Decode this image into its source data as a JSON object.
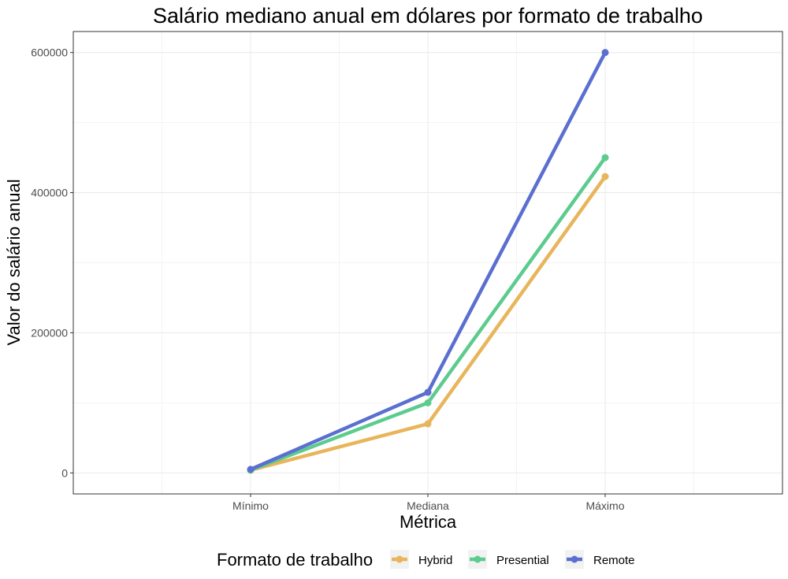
{
  "chart_data": {
    "type": "line",
    "title": "Salário mediano anual em dólares por formato de trabalho",
    "xlabel": "Métrica",
    "ylabel": "Valor do salário anual",
    "categories": [
      "Mínimo",
      "Mediana",
      "Máximo"
    ],
    "ylim": [
      -30000,
      630000
    ],
    "yticks": [
      0,
      200000,
      400000,
      600000
    ],
    "ytick_labels": [
      "0",
      "200000",
      "400000",
      "600000"
    ],
    "grid": true,
    "legend": {
      "title": "Formato de trabalho",
      "position": "bottom"
    },
    "series": [
      {
        "name": "Hybrid",
        "color": "#E8B55B",
        "values": [
          4000,
          70000,
          423000
        ]
      },
      {
        "name": "Presential",
        "color": "#5CCB8E",
        "values": [
          4000,
          100000,
          450000
        ]
      },
      {
        "name": "Remote",
        "color": "#5B6FD0",
        "values": [
          5000,
          115000,
          600000
        ]
      }
    ]
  }
}
